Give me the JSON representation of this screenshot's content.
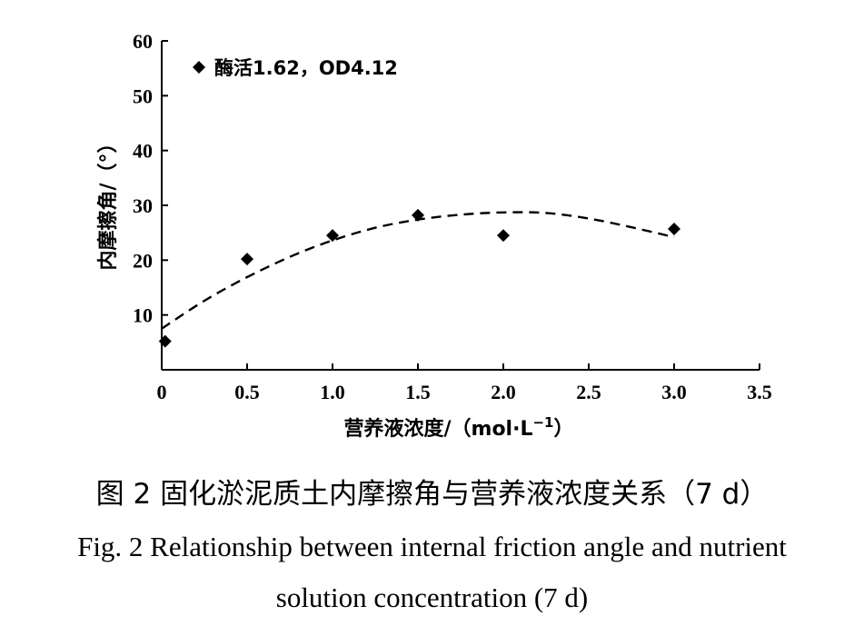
{
  "chart_data": {
    "type": "scatter",
    "xlabel": "营养液浓度/（mol·L",
    "xlabel_sup": "−1",
    "xlabel_close": "）",
    "ylabel": "内摩擦角/（°）",
    "xlim": [
      0,
      3.5
    ],
    "ylim": [
      0,
      60
    ],
    "x_ticks": [
      "0",
      "0.5",
      "1.0",
      "1.5",
      "2.0",
      "2.5",
      "3.0",
      "3.5"
    ],
    "y_ticks": [
      "10",
      "20",
      "30",
      "40",
      "50",
      "60"
    ],
    "grid": false,
    "legend_position": "top-left",
    "series": [
      {
        "name": "酶活1.62，OD4.12",
        "marker": "diamond",
        "x": [
          0.02,
          0.5,
          1.0,
          1.5,
          2.0,
          3.0
        ],
        "y": [
          5.2,
          20.2,
          24.5,
          28.2,
          24.5,
          25.7
        ]
      }
    ],
    "trendline": {
      "style": "dashed",
      "x": [
        0,
        0.25,
        0.5,
        0.75,
        1.0,
        1.25,
        1.5,
        1.75,
        2.0,
        2.25,
        2.5,
        2.75,
        3.0
      ],
      "y": [
        7.5,
        12.6,
        16.9,
        20.6,
        23.6,
        25.9,
        27.4,
        28.3,
        28.7,
        28.6,
        27.6,
        26.0,
        24.2
      ]
    },
    "colors": {
      "points": "#000000",
      "line": "#000000"
    }
  },
  "caption": {
    "cn": "图 2  固化淤泥质土内摩擦角与营养液浓度关系（7 d）",
    "en_line1": "Fig. 2 Relationship between internal friction angle and nutrient",
    "en_line2": "solution concentration (7 d)"
  }
}
